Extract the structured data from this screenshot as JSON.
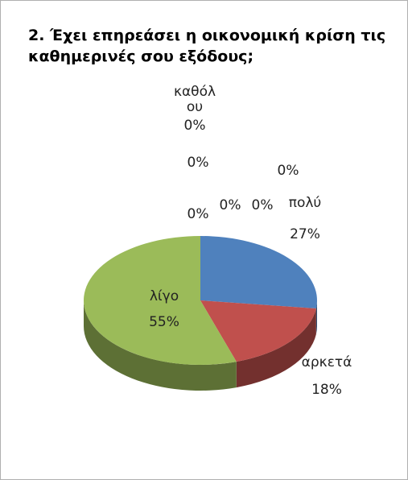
{
  "chart_data": {
    "type": "pie",
    "title": "2. Έχει επηρεάσει η οικονομική κρίση τις καθημερινές σου εξόδους;",
    "categories": [
      "πολύ",
      "αρκετά",
      "λίγο",
      "καθόλου",
      null,
      null,
      null,
      null,
      null
    ],
    "values": [
      27,
      18,
      55,
      0,
      0,
      0,
      0,
      0,
      0
    ],
    "value_labels": [
      "27%",
      "18%",
      "55%",
      "0%",
      "0%",
      "0%",
      "0%",
      "0%",
      "0%"
    ],
    "colors": [
      "#4f81bd",
      "#c0504d",
      "#9bbb59",
      "#8064a2",
      "#4bacc6",
      "#f79646",
      "#2c4d75",
      "#772c2a",
      "#5f7530"
    ]
  }
}
